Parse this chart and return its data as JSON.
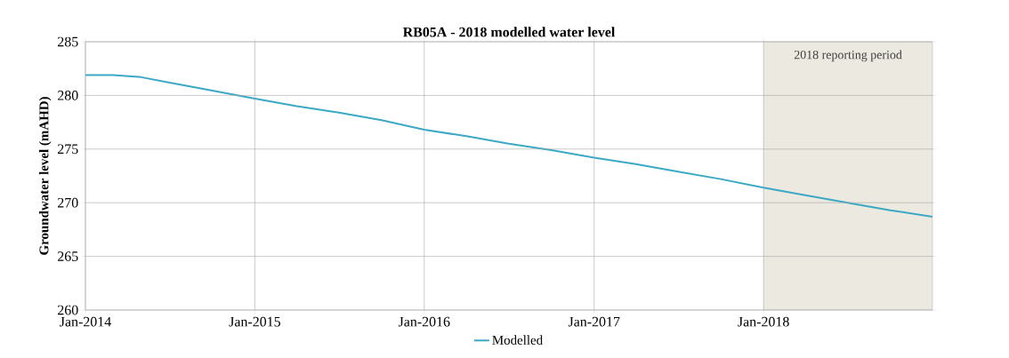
{
  "chart_data": {
    "type": "line",
    "title": "RB05A - 2018 modelled water level",
    "ylabel": "Groundwater level (mAHD)",
    "x": [
      "2014-01-01",
      "2014-03-01",
      "2014-05-01",
      "2014-07-01",
      "2014-09-01",
      "2014-11-01",
      "2015-01-01",
      "2015-04-01",
      "2015-07-01",
      "2015-10-01",
      "2016-01-01",
      "2016-04-01",
      "2016-07-01",
      "2016-10-01",
      "2017-01-01",
      "2017-04-01",
      "2017-07-01",
      "2017-10-01",
      "2018-01-01",
      "2018-04-01",
      "2018-07-01",
      "2018-10-01",
      "2018-12-31"
    ],
    "series": [
      {
        "name": "Modelled",
        "color": "#3ba9c5",
        "values": [
          281.9,
          281.9,
          281.7,
          281.2,
          280.7,
          280.2,
          279.7,
          279.0,
          278.4,
          277.7,
          276.8,
          276.2,
          275.5,
          274.9,
          274.2,
          273.6,
          272.9,
          272.2,
          271.4,
          270.7,
          270.0,
          269.3,
          268.7
        ]
      }
    ],
    "xlim": [
      "2014-01-01",
      "2018-12-31"
    ],
    "xticks": [
      {
        "value": "2014-01-01",
        "label": "Jan-2014"
      },
      {
        "value": "2015-01-01",
        "label": "Jan-2015"
      },
      {
        "value": "2016-01-01",
        "label": "Jan-2016"
      },
      {
        "value": "2017-01-01",
        "label": "Jan-2017"
      },
      {
        "value": "2018-01-01",
        "label": "Jan-2018"
      }
    ],
    "ylim": [
      260,
      285
    ],
    "yticks": [
      260,
      265,
      270,
      275,
      280,
      285
    ],
    "bands": [
      {
        "axis": "x",
        "from": "2018-01-01",
        "to": "2018-12-31",
        "label": "2018 reporting period",
        "color": "#ebe9e0"
      }
    ],
    "grid": true,
    "legend": "bottom",
    "marker": "none",
    "line_style": "solid"
  }
}
